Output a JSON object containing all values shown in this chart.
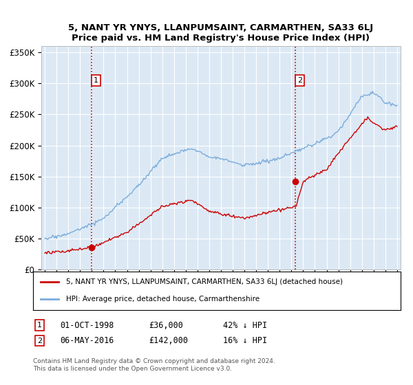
{
  "title": "5, NANT YR YNYS, LLANPUMSAINT, CARMARTHEN, SA33 6LJ",
  "subtitle": "Price paid vs. HM Land Registry's House Price Index (HPI)",
  "ylabel_ticks": [
    "£0",
    "£50K",
    "£100K",
    "£150K",
    "£200K",
    "£250K",
    "£300K",
    "£350K"
  ],
  "ytick_vals": [
    0,
    50000,
    100000,
    150000,
    200000,
    250000,
    300000,
    350000
  ],
  "ylim": [
    0,
    360000
  ],
  "xlim_start": 1994.7,
  "xlim_end": 2025.3,
  "sale1_x": 1999.0,
  "sale1_y": 36000,
  "sale1_label": "01-OCT-1998",
  "sale1_price": "£36,000",
  "sale1_hpi": "42% ↓ HPI",
  "sale2_x": 2016.35,
  "sale2_y": 142000,
  "sale2_label": "06-MAY-2016",
  "sale2_price": "£142,000",
  "sale2_hpi": "16% ↓ HPI",
  "red_color": "#cc0000",
  "blue_color": "#7aabda",
  "dashed_color": "#cc0000",
  "bg_color": "#dce9f5",
  "bg_color_inner": "#e8f1fa",
  "legend_line1": "5, NANT YR YNYS, LLANPUMSAINT, CARMARTHEN, SA33 6LJ (detached house)",
  "legend_line2": "HPI: Average price, detached house, Carmarthenshire",
  "footnote1": "Contains HM Land Registry data © Crown copyright and database right 2024.",
  "footnote2": "This data is licensed under the Open Government Licence v3.0."
}
